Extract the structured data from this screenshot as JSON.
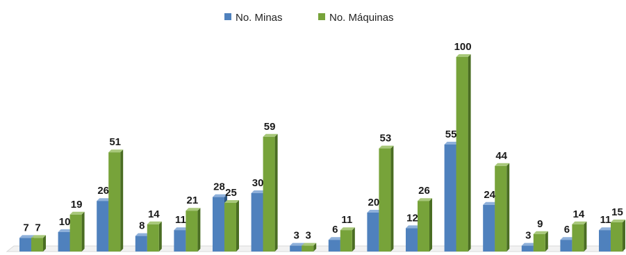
{
  "chart_data": {
    "type": "bar",
    "categories": [
      "",
      "",
      "",
      "",
      "",
      "",
      "",
      "",
      "",
      "",
      "",
      "",
      "",
      "",
      "",
      ""
    ],
    "series": [
      {
        "name": "No. Minas",
        "color": "#4F81BD",
        "values": [
          7,
          10,
          26,
          8,
          11,
          28,
          30,
          3,
          6,
          20,
          12,
          55,
          24,
          3,
          6,
          11
        ]
      },
      {
        "name": "No. Máquinas",
        "color": "#77A33A",
        "values": [
          7,
          19,
          51,
          14,
          21,
          25,
          59,
          3,
          11,
          53,
          26,
          100,
          44,
          9,
          14,
          15
        ]
      }
    ],
    "ylim": [
      0,
      100
    ],
    "grid": false,
    "data_labels": true,
    "legend": "top-center",
    "title": "",
    "xlabel": "",
    "ylabel": ""
  }
}
